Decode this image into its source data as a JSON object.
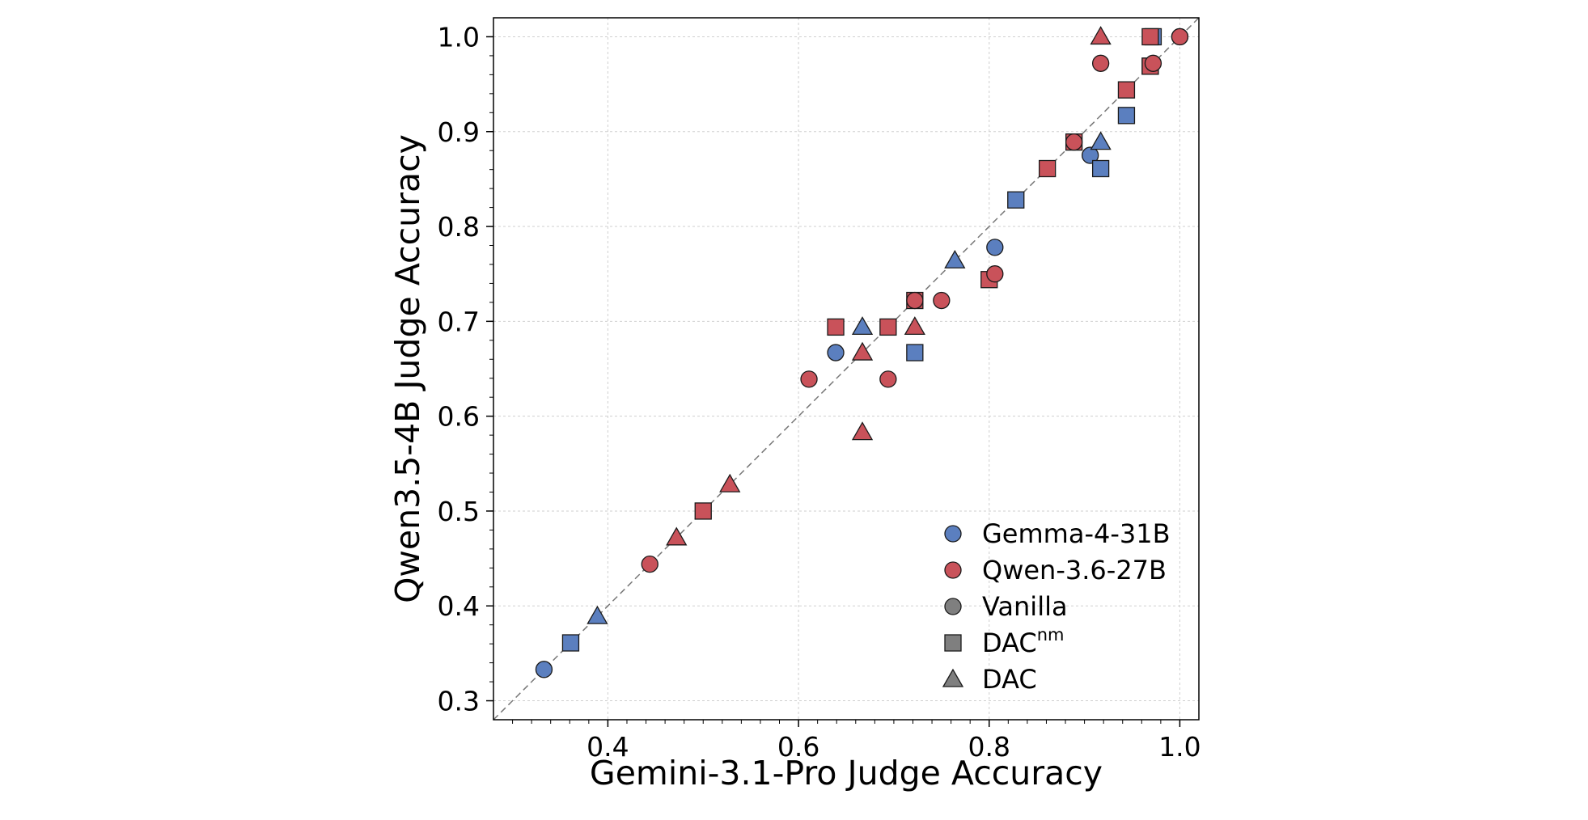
{
  "chart_data": {
    "type": "scatter",
    "title": "",
    "xlabel": "Gemini-3.1-Pro Judge Accuracy",
    "ylabel": "Qwen3.5-4B Judge Accuracy",
    "xlim": [
      0.28,
      1.02
    ],
    "ylim": [
      0.28,
      1.02
    ],
    "xticks": [
      "0.4",
      "0.6",
      "0.8",
      "1.0"
    ],
    "yticks": [
      "0.3",
      "0.4",
      "0.5",
      "0.6",
      "0.7",
      "0.8",
      "0.9",
      "1.0"
    ],
    "grid": true,
    "diagonal": "y = x (dashed)",
    "legend_position": "lower-right",
    "colors": {
      "gemma": "#5b7fbf",
      "qwen": "#c9525a",
      "method_neutral": "#7f7f7f"
    },
    "legend": {
      "models": [
        {
          "key": "gemma",
          "label": "Gemma-4-31B"
        },
        {
          "key": "qwen",
          "label": "Qwen-3.6-27B"
        }
      ],
      "methods": [
        {
          "key": "vanilla",
          "label": "Vanilla",
          "marker": "circle"
        },
        {
          "key": "dacnm",
          "label": "DAC",
          "superscript": "nm",
          "marker": "square"
        },
        {
          "key": "dac",
          "label": "DAC",
          "marker": "triangle"
        }
      ]
    },
    "points": [
      {
        "model": "gemma",
        "method": "vanilla",
        "x": 0.333,
        "y": 0.333
      },
      {
        "model": "gemma",
        "method": "dacnm",
        "x": 0.361,
        "y": 0.361
      },
      {
        "model": "gemma",
        "method": "dac",
        "x": 0.389,
        "y": 0.389
      },
      {
        "model": "gemma",
        "method": "vanilla",
        "x": 0.639,
        "y": 0.667
      },
      {
        "model": "gemma",
        "method": "dac",
        "x": 0.667,
        "y": 0.694
      },
      {
        "model": "gemma",
        "method": "dacnm",
        "x": 0.722,
        "y": 0.667
      },
      {
        "model": "gemma",
        "method": "dac",
        "x": 0.764,
        "y": 0.764
      },
      {
        "model": "gemma",
        "method": "vanilla",
        "x": 0.806,
        "y": 0.778
      },
      {
        "model": "gemma",
        "method": "dacnm",
        "x": 0.828,
        "y": 0.828
      },
      {
        "model": "gemma",
        "method": "vanilla",
        "x": 0.906,
        "y": 0.875
      },
      {
        "model": "gemma",
        "method": "dacnm",
        "x": 0.917,
        "y": 0.861
      },
      {
        "model": "gemma",
        "method": "dac",
        "x": 0.917,
        "y": 0.889
      },
      {
        "model": "gemma",
        "method": "dacnm",
        "x": 0.944,
        "y": 0.917
      },
      {
        "model": "gemma",
        "method": "dacnm",
        "x": 0.972,
        "y": 1.0
      },
      {
        "model": "gemma",
        "method": "dacnm",
        "x": 0.969,
        "y": 0.969
      },
      {
        "model": "gemma",
        "method": "vanilla",
        "x": 1.0,
        "y": 1.0
      },
      {
        "model": "qwen",
        "method": "vanilla",
        "x": 0.444,
        "y": 0.444
      },
      {
        "model": "qwen",
        "method": "dac",
        "x": 0.472,
        "y": 0.472
      },
      {
        "model": "qwen",
        "method": "dacnm",
        "x": 0.5,
        "y": 0.5
      },
      {
        "model": "qwen",
        "method": "dac",
        "x": 0.528,
        "y": 0.528
      },
      {
        "model": "qwen",
        "method": "vanilla",
        "x": 0.611,
        "y": 0.639
      },
      {
        "model": "qwen",
        "method": "dacnm",
        "x": 0.639,
        "y": 0.694
      },
      {
        "model": "qwen",
        "method": "dac",
        "x": 0.667,
        "y": 0.583
      },
      {
        "model": "qwen",
        "method": "dac",
        "x": 0.667,
        "y": 0.667
      },
      {
        "model": "qwen",
        "method": "dacnm",
        "x": 0.694,
        "y": 0.694
      },
      {
        "model": "qwen",
        "method": "vanilla",
        "x": 0.694,
        "y": 0.639
      },
      {
        "model": "qwen",
        "method": "dac",
        "x": 0.722,
        "y": 0.694
      },
      {
        "model": "qwen",
        "method": "dacnm",
        "x": 0.722,
        "y": 0.722
      },
      {
        "model": "qwen",
        "method": "vanilla",
        "x": 0.722,
        "y": 0.722
      },
      {
        "model": "qwen",
        "method": "vanilla",
        "x": 0.75,
        "y": 0.722
      },
      {
        "model": "qwen",
        "method": "dacnm",
        "x": 0.8,
        "y": 0.744
      },
      {
        "model": "qwen",
        "method": "vanilla",
        "x": 0.806,
        "y": 0.75
      },
      {
        "model": "qwen",
        "method": "dacnm",
        "x": 0.861,
        "y": 0.861
      },
      {
        "model": "qwen",
        "method": "dacnm",
        "x": 0.889,
        "y": 0.889
      },
      {
        "model": "qwen",
        "method": "vanilla",
        "x": 0.889,
        "y": 0.889
      },
      {
        "model": "qwen",
        "method": "dac",
        "x": 0.917,
        "y": 1.0
      },
      {
        "model": "qwen",
        "method": "vanilla",
        "x": 0.917,
        "y": 0.972
      },
      {
        "model": "qwen",
        "method": "dacnm",
        "x": 0.944,
        "y": 0.944
      },
      {
        "model": "qwen",
        "method": "dacnm",
        "x": 0.969,
        "y": 1.0
      },
      {
        "model": "qwen",
        "method": "dacnm",
        "x": 0.969,
        "y": 0.969
      },
      {
        "model": "qwen",
        "method": "vanilla",
        "x": 0.972,
        "y": 0.972
      },
      {
        "model": "qwen",
        "method": "vanilla",
        "x": 1.0,
        "y": 1.0
      }
    ]
  }
}
